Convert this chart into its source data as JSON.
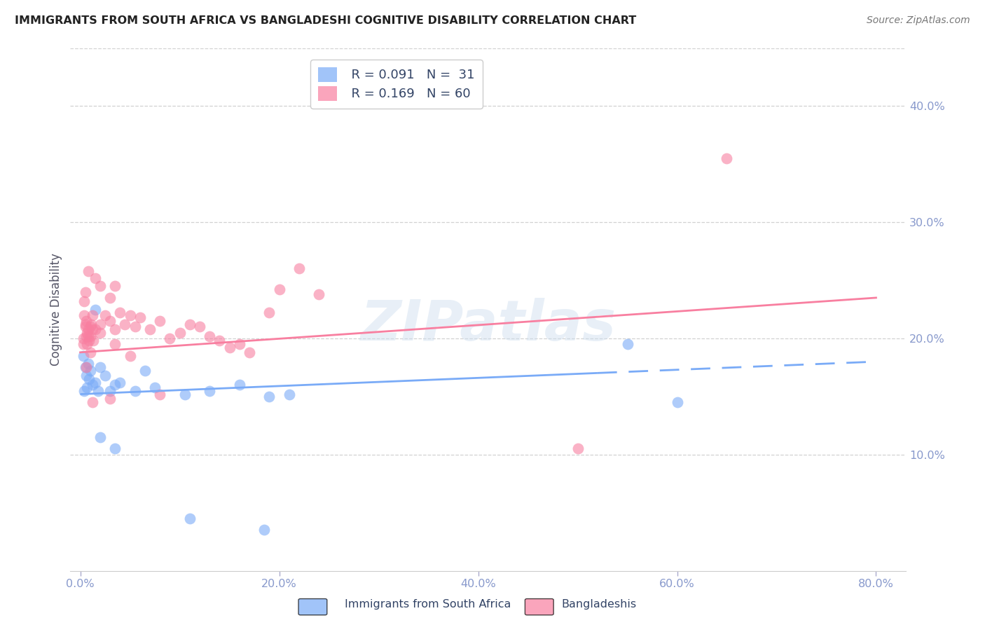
{
  "title": "IMMIGRANTS FROM SOUTH AFRICA VS BANGLADESHI COGNITIVE DISABILITY CORRELATION CHART",
  "source": "Source: ZipAtlas.com",
  "ylabel": "Cognitive Disability",
  "xlabel_vals": [
    0.0,
    20.0,
    40.0,
    60.0,
    80.0
  ],
  "ylabel_vals": [
    10.0,
    20.0,
    30.0,
    40.0
  ],
  "ylim": [
    0.0,
    45.0
  ],
  "xlim": [
    -1.0,
    83.0
  ],
  "legend_blue_r": "R = 0.091",
  "legend_blue_n": "N =  31",
  "legend_pink_r": "R = 0.169",
  "legend_pink_n": "N = 60",
  "blue_color": "#7aabf7",
  "pink_color": "#f87fa0",
  "blue_scatter": [
    [
      0.5,
      17.5
    ],
    [
      0.8,
      17.8
    ],
    [
      0.6,
      16.8
    ],
    [
      0.9,
      16.5
    ],
    [
      1.0,
      17.2
    ],
    [
      1.2,
      16.0
    ],
    [
      0.4,
      15.5
    ],
    [
      0.7,
      15.8
    ],
    [
      1.5,
      16.2
    ],
    [
      1.8,
      15.5
    ],
    [
      2.0,
      17.5
    ],
    [
      2.5,
      16.8
    ],
    [
      3.0,
      15.5
    ],
    [
      3.5,
      16.0
    ],
    [
      4.0,
      16.2
    ],
    [
      5.5,
      15.5
    ],
    [
      6.5,
      17.2
    ],
    [
      7.5,
      15.8
    ],
    [
      10.5,
      15.2
    ],
    [
      13.0,
      15.5
    ],
    [
      16.0,
      16.0
    ],
    [
      19.0,
      15.0
    ],
    [
      21.0,
      15.2
    ],
    [
      55.0,
      19.5
    ],
    [
      60.0,
      14.5
    ],
    [
      2.0,
      11.5
    ],
    [
      3.5,
      10.5
    ],
    [
      11.0,
      4.5
    ],
    [
      18.5,
      3.5
    ],
    [
      1.5,
      22.5
    ],
    [
      0.3,
      18.5
    ]
  ],
  "pink_scatter": [
    [
      0.3,
      19.5
    ],
    [
      0.5,
      21.0
    ],
    [
      0.6,
      21.5
    ],
    [
      0.7,
      20.5
    ],
    [
      0.8,
      20.2
    ],
    [
      0.9,
      19.8
    ],
    [
      1.0,
      18.8
    ],
    [
      1.1,
      21.2
    ],
    [
      1.2,
      20.8
    ],
    [
      1.3,
      19.8
    ],
    [
      0.4,
      22.0
    ],
    [
      0.5,
      21.2
    ],
    [
      0.6,
      20.2
    ],
    [
      0.7,
      19.5
    ],
    [
      0.8,
      20.8
    ],
    [
      1.0,
      20.2
    ],
    [
      1.2,
      22.0
    ],
    [
      1.5,
      20.8
    ],
    [
      2.0,
      21.2
    ],
    [
      2.5,
      22.0
    ],
    [
      3.0,
      21.5
    ],
    [
      3.5,
      20.8
    ],
    [
      4.0,
      22.2
    ],
    [
      4.5,
      21.2
    ],
    [
      5.0,
      22.0
    ],
    [
      5.5,
      21.0
    ],
    [
      6.0,
      21.8
    ],
    [
      7.0,
      20.8
    ],
    [
      8.0,
      21.5
    ],
    [
      9.0,
      20.0
    ],
    [
      10.0,
      20.5
    ],
    [
      11.0,
      21.2
    ],
    [
      12.0,
      21.0
    ],
    [
      13.0,
      20.2
    ],
    [
      14.0,
      19.8
    ],
    [
      15.0,
      19.2
    ],
    [
      16.0,
      19.5
    ],
    [
      17.0,
      18.8
    ],
    [
      19.0,
      22.2
    ],
    [
      20.0,
      24.2
    ],
    [
      24.0,
      23.8
    ],
    [
      2.0,
      24.5
    ],
    [
      3.0,
      23.5
    ],
    [
      0.5,
      24.0
    ],
    [
      0.8,
      25.8
    ],
    [
      1.5,
      25.2
    ],
    [
      0.4,
      23.2
    ],
    [
      3.5,
      24.5
    ],
    [
      22.0,
      26.0
    ],
    [
      1.2,
      14.5
    ],
    [
      3.0,
      14.8
    ],
    [
      8.0,
      15.2
    ],
    [
      50.0,
      10.5
    ],
    [
      65.0,
      35.5
    ],
    [
      0.3,
      20.0
    ],
    [
      1.0,
      21.0
    ],
    [
      2.0,
      20.5
    ],
    [
      3.5,
      19.5
    ],
    [
      5.0,
      18.5
    ],
    [
      0.6,
      17.5
    ]
  ],
  "blue_line_x": [
    0.0,
    80.0
  ],
  "blue_line_y": [
    15.2,
    18.0
  ],
  "blue_line_solid_end": 52.0,
  "pink_line_x": [
    0.0,
    80.0
  ],
  "pink_line_y": [
    18.8,
    23.5
  ],
  "watermark": "ZIPatlas",
  "grid_color": "#cccccc",
  "background_color": "#ffffff",
  "tick_color": "#8899cc",
  "label_color": "#8899cc",
  "title_color": "#222222"
}
